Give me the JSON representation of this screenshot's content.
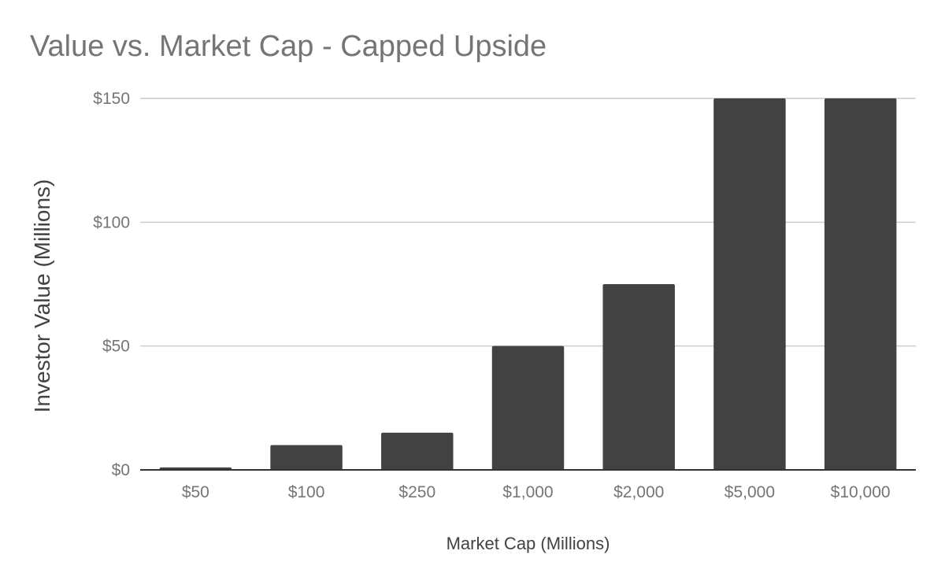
{
  "chart_data": {
    "type": "bar",
    "title": "Value vs. Market Cap - Capped Upside",
    "xlabel": "Market Cap (Millions)",
    "ylabel": "Investor Value (Millions)",
    "categories": [
      "$50",
      "$100",
      "$250",
      "$1,000",
      "$2,000",
      "$5,000",
      "$10,000"
    ],
    "values": [
      1,
      10,
      15,
      50,
      75,
      150,
      150
    ],
    "ylim": [
      0,
      150
    ],
    "yticks": [
      0,
      50,
      100,
      150
    ],
    "ytick_labels": [
      "$0",
      "$50",
      "$100",
      "$150"
    ],
    "grid": true,
    "legend": "none",
    "bar_color": "#424242",
    "grid_color": "#cccccc",
    "axis_color": "#333333"
  }
}
